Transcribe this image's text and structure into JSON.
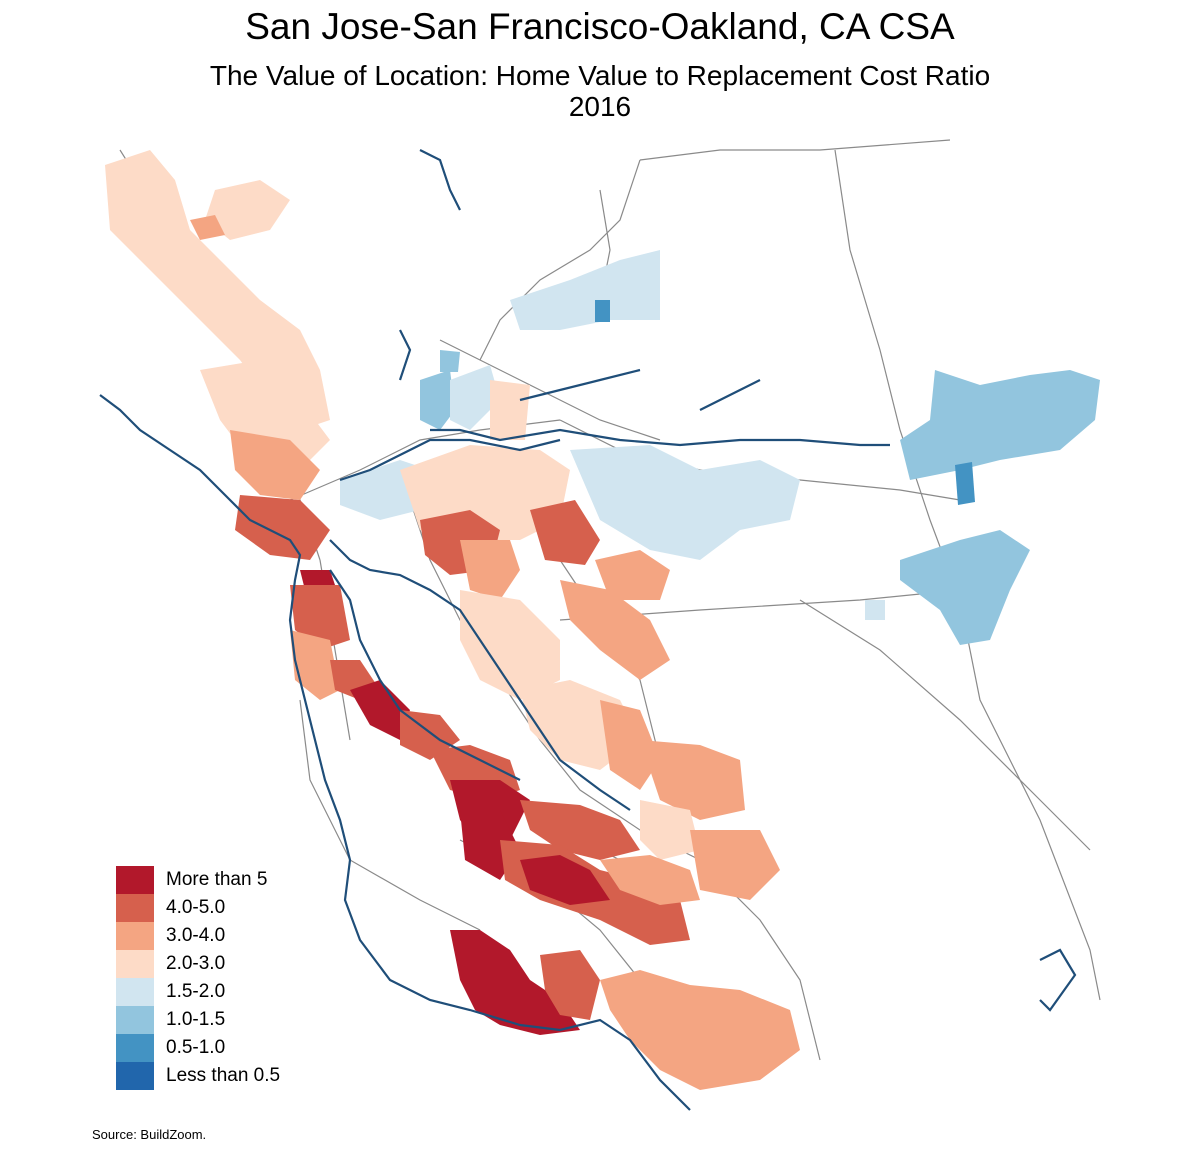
{
  "title": "San Jose-San Francisco-Oakland, CA CSA",
  "subtitle": "The Value of Location: Home Value to Replacement Cost Ratio",
  "year": "2016",
  "source": "Source: BuildZoom.",
  "legend": [
    {
      "label": "More than 5",
      "color": "#b2182b"
    },
    {
      "label": "4.0-5.0",
      "color": "#d6604d"
    },
    {
      "label": "3.0-4.0",
      "color": "#f4a582"
    },
    {
      "label": "2.0-3.0",
      "color": "#fddbc7"
    },
    {
      "label": "1.5-2.0",
      "color": "#d1e5f0"
    },
    {
      "label": "1.0-1.5",
      "color": "#92c5de"
    },
    {
      "label": "0.5-1.0",
      "color": "#4393c3"
    },
    {
      "label": "Less than 0.5",
      "color": "#2166ac"
    }
  ],
  "colors": {
    "coastline": "#1f4e79",
    "roads": "#808080"
  }
}
